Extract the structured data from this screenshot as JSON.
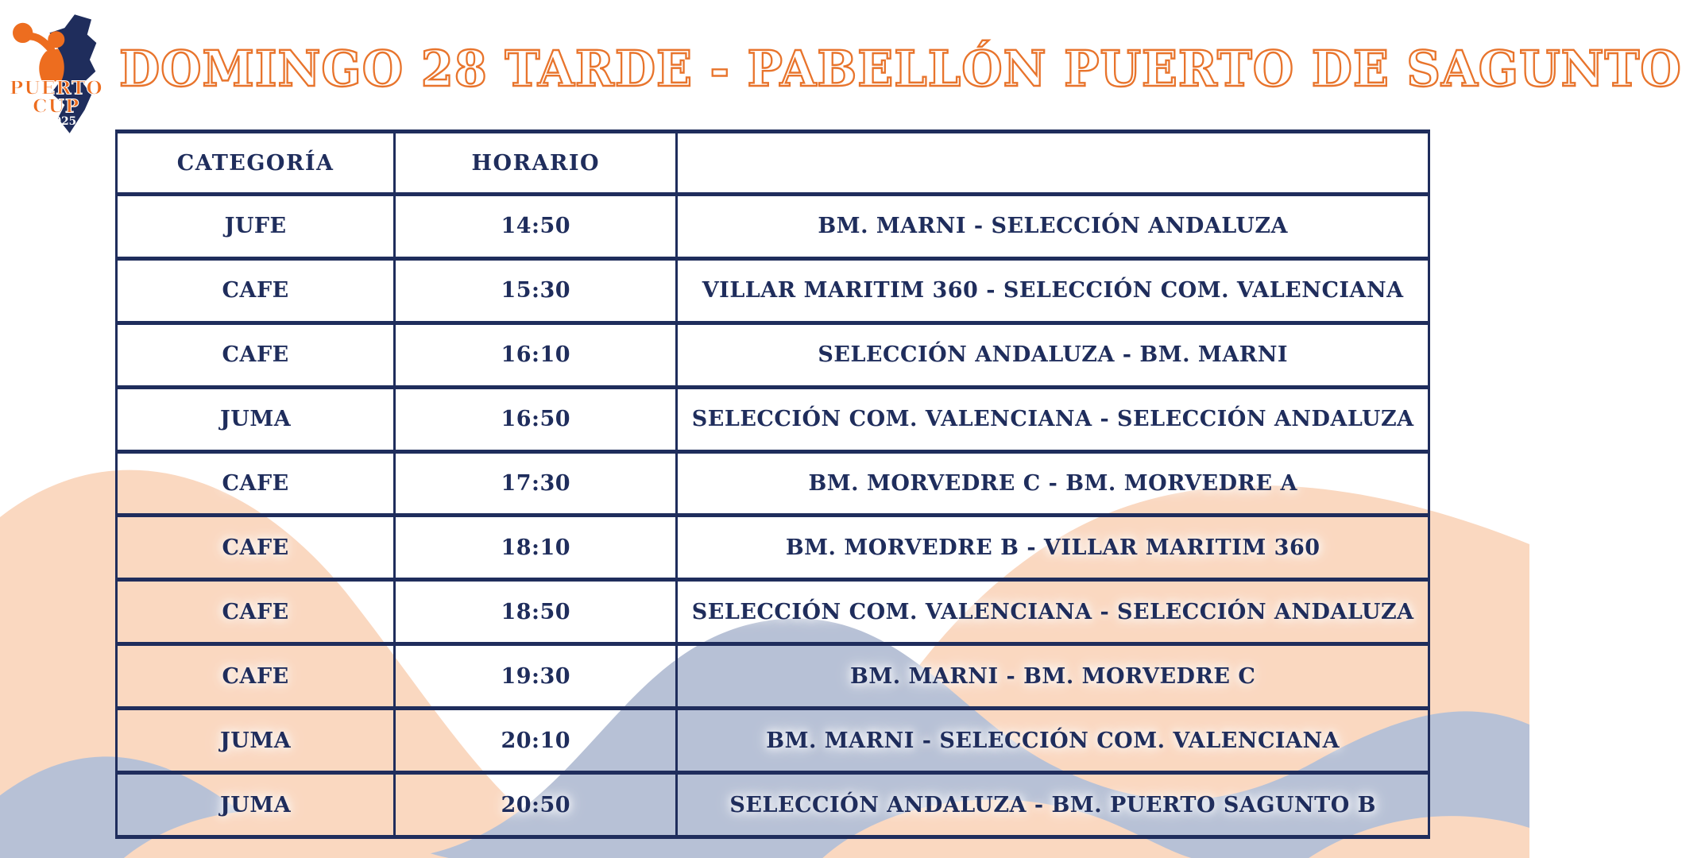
{
  "logo": {
    "line1": "PUERTO",
    "line2": "CUP",
    "year": "2025"
  },
  "title": "DOMINGO 28 TARDE - PABELLÓN PUERTO DE SAGUNTO",
  "table": {
    "headers": {
      "categoria": "CATEGORÍA",
      "horario": "HORARIO",
      "partido": ""
    },
    "rows": [
      {
        "categoria": "JUFE",
        "horario": "14:50",
        "partido": "BM. MARNI - SELECCIÓN ANDALUZA"
      },
      {
        "categoria": "CAFE",
        "horario": "15:30",
        "partido": "VILLAR MARITIM 360 - SELECCIÓN COM. VALENCIANA"
      },
      {
        "categoria": "CAFE",
        "horario": "16:10",
        "partido": "SELECCIÓN ANDALUZA - BM. MARNI"
      },
      {
        "categoria": "JUMA",
        "horario": "16:50",
        "partido": "SELECCIÓN COM. VALENCIANA - SELECCIÓN ANDALUZA"
      },
      {
        "categoria": "CAFE",
        "horario": "17:30",
        "partido": "BM. MORVEDRE C - BM. MORVEDRE A"
      },
      {
        "categoria": "CAFE",
        "horario": "18:10",
        "partido": "BM. MORVEDRE B - VILLAR MARITIM 360"
      },
      {
        "categoria": "CAFE",
        "horario": "18:50",
        "partido": "SELECCIÓN COM. VALENCIANA - SELECCIÓN ANDALUZA"
      },
      {
        "categoria": "CAFE",
        "horario": "19:30",
        "partido": "BM. MARNI - BM. MORVEDRE C"
      },
      {
        "categoria": "JUMA",
        "horario": "20:10",
        "partido": "BM. MARNI - SELECCIÓN COM. VALENCIANA"
      },
      {
        "categoria": "JUMA",
        "horario": "20:50",
        "partido": "SELECCIÓN ANDALUZA - BM. PUERTO SAGUNTO B"
      }
    ]
  },
  "colors": {
    "navy": "#1f2d5c",
    "orange": "#e8742c",
    "logo_orange": "#ed6d1f",
    "peach_wave": "#fad8c0",
    "blue_wave": "#b7c1d6"
  },
  "icons": {
    "logo": "puerto-cup-handball-logo"
  }
}
